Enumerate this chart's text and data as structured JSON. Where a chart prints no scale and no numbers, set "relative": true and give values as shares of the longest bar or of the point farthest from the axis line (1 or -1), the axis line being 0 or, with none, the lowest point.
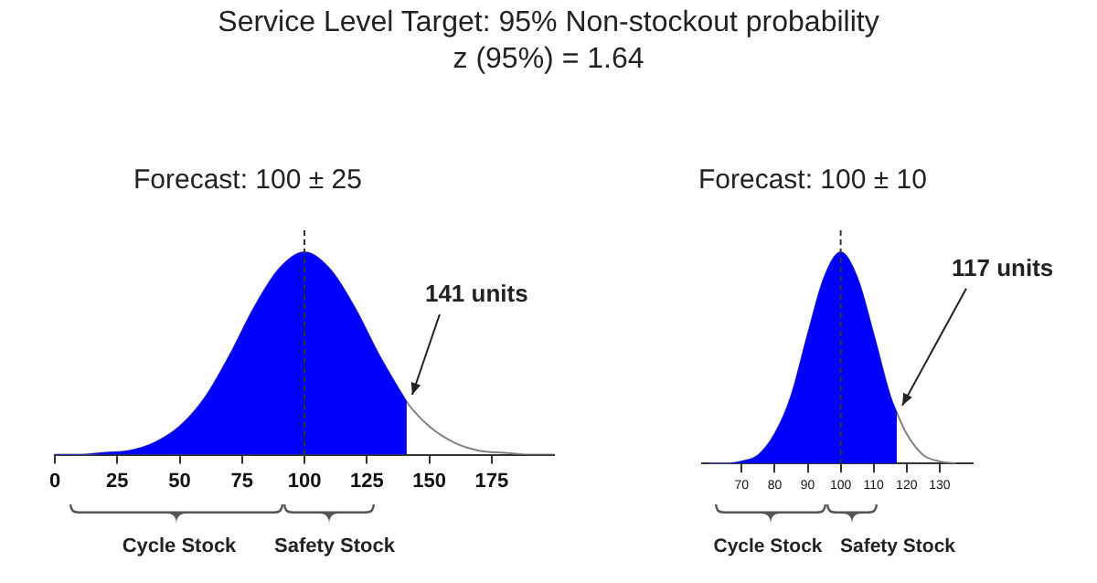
{
  "chart_data": [
    {
      "type": "other",
      "title": "Service Level Target:  95% Non-stockout probability",
      "subtitle": "z (95%) = 1.64"
    },
    {
      "type": "area",
      "title": "Forecast: 100 ± 25",
      "relative": true,
      "x": [
        0,
        10,
        20,
        30,
        40,
        50,
        60,
        70,
        80,
        90,
        100,
        110,
        120,
        130,
        140,
        141,
        150,
        160,
        170,
        180,
        190,
        200
      ],
      "series": [
        {
          "type": "area",
          "color": "#0000ff",
          "values": [
            0,
            0,
            0.01,
            0.02,
            0.06,
            0.14,
            0.28,
            0.49,
            0.73,
            0.92,
            1,
            0.92,
            0.73,
            0.49,
            0.28,
            0.26,
            null,
            null,
            null,
            null,
            null,
            null
          ]
        },
        {
          "type": "line",
          "color": "#808080",
          "values": [
            0,
            0,
            0.01,
            0.02,
            0.06,
            0.14,
            0.28,
            0.49,
            0.73,
            0.92,
            1,
            0.92,
            0.73,
            0.49,
            0.28,
            0.26,
            0.14,
            0.06,
            0.02,
            0.01,
            0,
            0
          ]
        }
      ],
      "xlim": [
        0,
        200
      ],
      "xticks": [
        0,
        25,
        50,
        75,
        100,
        125,
        150,
        175
      ],
      "ref_lines": [
        {
          "axis": "x",
          "value": 100,
          "color": "#333333",
          "line_style": "dashed"
        }
      ],
      "annotations": [
        "Cycle Stock",
        "Safety Stock",
        {
          "text": "141 units",
          "x": 141,
          "y": 0.26
        }
      ]
    },
    {
      "type": "area",
      "title": "Forecast: 100 ± 10",
      "relative": true,
      "x": [
        60,
        65,
        70,
        75,
        80,
        85,
        90,
        95,
        100,
        105,
        110,
        115,
        117,
        120,
        125,
        130,
        135
      ],
      "series": [
        {
          "type": "area",
          "color": "#0000ff",
          "values": [
            0,
            0,
            0.01,
            0.04,
            0.14,
            0.32,
            0.61,
            0.88,
            1,
            0.88,
            0.61,
            0.32,
            0.24,
            null,
            null,
            null,
            null
          ]
        },
        {
          "type": "line",
          "color": "#808080",
          "values": [
            0,
            0,
            0.01,
            0.04,
            0.14,
            0.32,
            0.61,
            0.88,
            1,
            0.88,
            0.61,
            0.32,
            0.24,
            0.14,
            0.04,
            0.01,
            0
          ]
        }
      ],
      "xlim": [
        58,
        140
      ],
      "xticks": [
        70,
        80,
        90,
        100,
        110,
        120,
        130
      ],
      "ref_lines": [
        {
          "axis": "x",
          "value": 100,
          "color": "#333333",
          "line_style": "dashed"
        }
      ],
      "annotations": [
        "Cycle Stock",
        "Safety Stock",
        {
          "text": "117 units",
          "x": 117,
          "y": 0.24
        }
      ]
    }
  ]
}
